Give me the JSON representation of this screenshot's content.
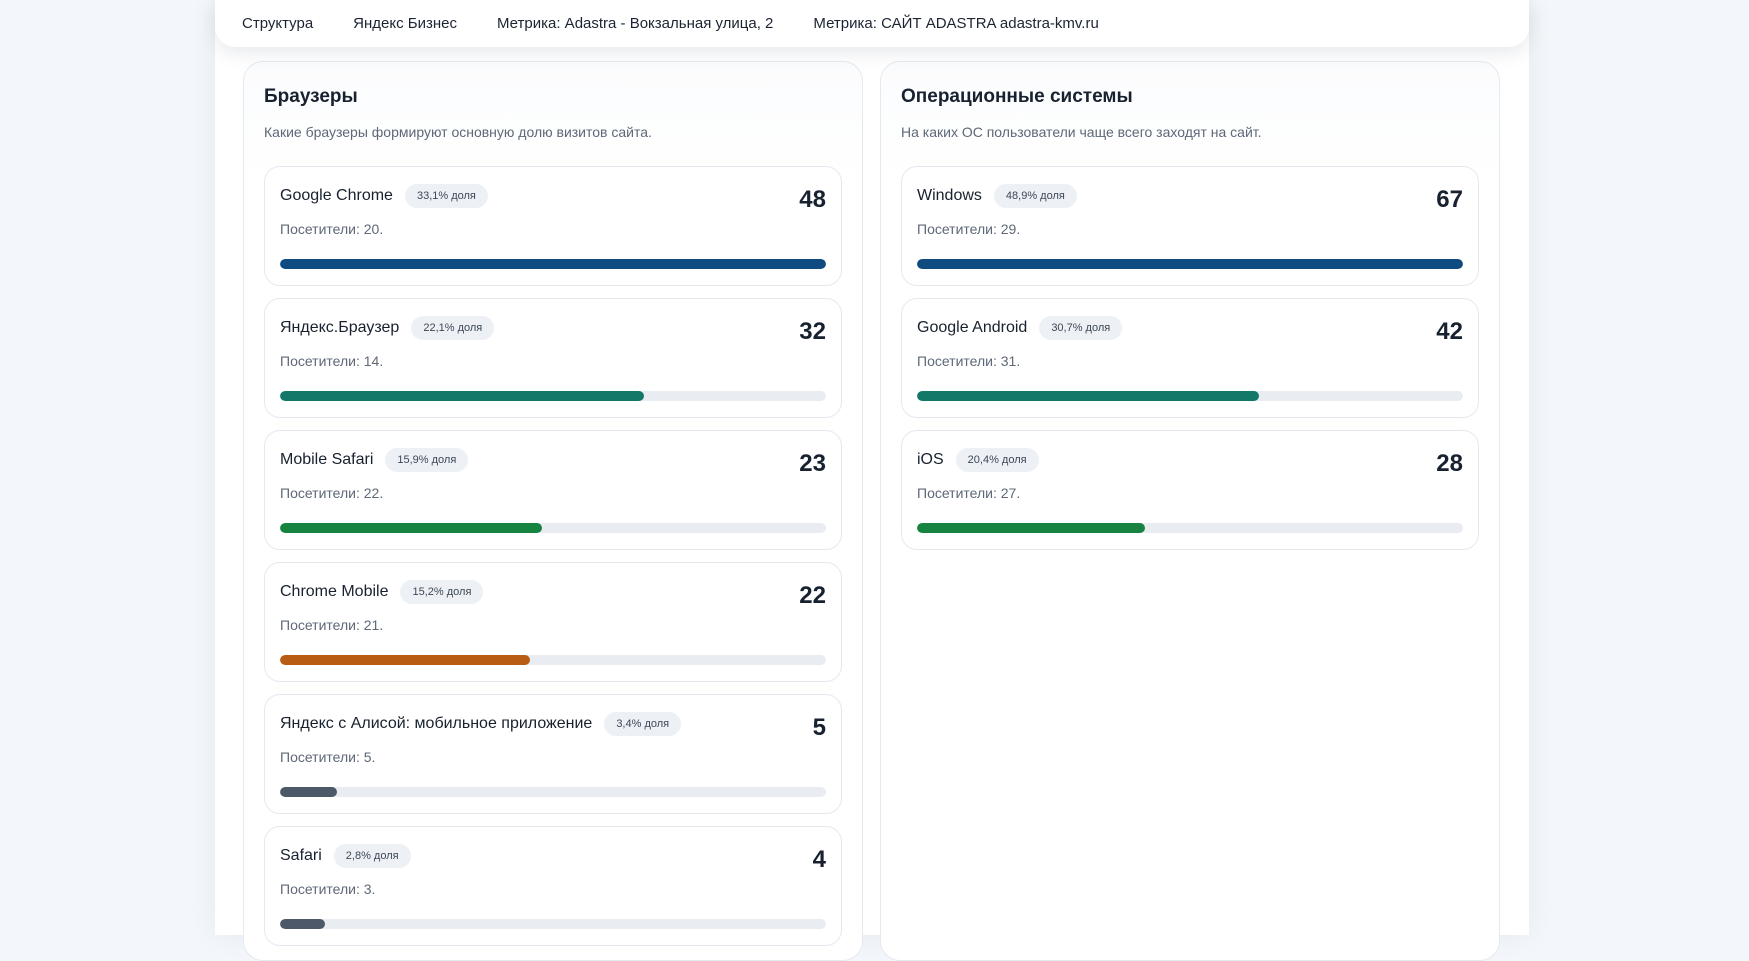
{
  "nav": {
    "items": [
      "Структура",
      "Яндекс Бизнес",
      "Метрика: Adastra - Вокзальная улица, 2",
      "Метрика: САЙТ ADASTRA adastra-kmv.ru"
    ]
  },
  "browsers": {
    "title": "Браузеры",
    "subtitle": "Какие браузеры формируют основную долю визитов сайта.",
    "items": [
      {
        "name": "Google Chrome",
        "share": "33,1% доля",
        "value": "48",
        "visitors": "Посетители: 20.",
        "fill": 1.0,
        "color": "#0f4a80"
      },
      {
        "name": "Яндекс.Браузер",
        "share": "22,1% доля",
        "value": "32",
        "visitors": "Посетители: 14.",
        "fill": 0.667,
        "color": "#137868"
      },
      {
        "name": "Mobile Safari",
        "share": "15,9% доля",
        "value": "23",
        "visitors": "Посетители: 22.",
        "fill": 0.479,
        "color": "#168440"
      },
      {
        "name": "Chrome Mobile",
        "share": "15,2% доля",
        "value": "22",
        "visitors": "Посетители: 21.",
        "fill": 0.458,
        "color": "#b85c14"
      },
      {
        "name": "Яндекс с Алисой: мобильное приложение",
        "share": "3,4% доля",
        "value": "5",
        "visitors": "Посетители: 5.",
        "fill": 0.104,
        "color": "#4d5868"
      },
      {
        "name": "Safari",
        "share": "2,8% доля",
        "value": "4",
        "visitors": "Посетители: 3.",
        "fill": 0.083,
        "color": "#4d5868"
      }
    ]
  },
  "os": {
    "title": "Операционные системы",
    "subtitle": "На каких ОС пользователи чаще всего заходят на сайт.",
    "items": [
      {
        "name": "Windows",
        "share": "48,9% доля",
        "value": "67",
        "visitors": "Посетители: 29.",
        "fill": 1.0,
        "color": "#0f4a80"
      },
      {
        "name": "Google Android",
        "share": "30,7% доля",
        "value": "42",
        "visitors": "Посетители: 31.",
        "fill": 0.627,
        "color": "#137868"
      },
      {
        "name": "iOS",
        "share": "20,4% доля",
        "value": "28",
        "visitors": "Посетители: 27.",
        "fill": 0.418,
        "color": "#168440"
      }
    ]
  }
}
